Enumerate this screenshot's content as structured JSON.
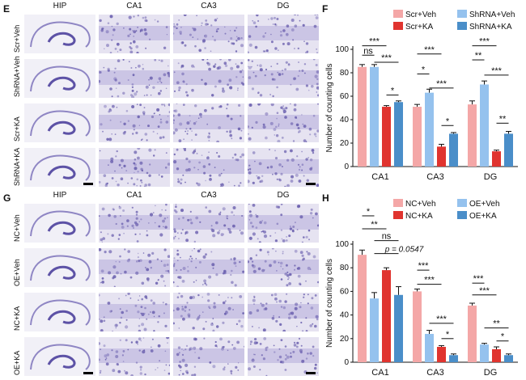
{
  "top_panel": {
    "label": "E",
    "columns": [
      "HIP",
      "CA1",
      "CA3",
      "DG"
    ],
    "rows": [
      "Scr+Veh",
      "ShRNA+Veh",
      "Scr+KA",
      "ShRNA+KA"
    ]
  },
  "bottom_panel": {
    "label": "G",
    "columns": [
      "HIP",
      "CA1",
      "CA3",
      "DG"
    ],
    "rows": [
      "NC+Veh",
      "OE+Veh",
      "NC+KA",
      "OE+KA"
    ]
  },
  "colors": {
    "light_red": "#f4a7a7",
    "red": "#e0342f",
    "light_blue": "#95c2ee",
    "blue": "#4a8ec9",
    "stain": "#7b6fb8"
  },
  "chart_data": [
    {
      "panel": "F",
      "type": "bar",
      "ylabel": "Number of counting cells",
      "ylim": [
        0,
        100
      ],
      "yticks": [
        0,
        20,
        40,
        60,
        80,
        100
      ],
      "categories": [
        "CA1",
        "CA3",
        "DG"
      ],
      "legend_placement": "top",
      "series": [
        {
          "name": "Scr+Veh",
          "color": "#f4a7a7",
          "values": [
            85,
            51,
            53
          ],
          "errors": [
            2,
            2,
            3
          ]
        },
        {
          "name": "ShRNA+Veh",
          "color": "#95c2ee",
          "values": [
            85,
            63,
            70
          ],
          "errors": [
            2,
            3,
            3
          ]
        },
        {
          "name": "Scr+KA",
          "color": "#e0342f",
          "values": [
            51,
            17,
            13
          ],
          "errors": [
            1,
            2,
            1
          ]
        },
        {
          "name": "ShRNA+KA",
          "color": "#4a8ec9",
          "values": [
            55,
            28,
            28
          ],
          "errors": [
            1,
            1,
            2
          ]
        }
      ],
      "significance": [
        "***",
        "ns",
        "***",
        "*",
        "***",
        "*",
        "***",
        "*",
        "***",
        "**",
        "***",
        "**"
      ]
    },
    {
      "panel": "H",
      "type": "bar",
      "ylabel": "Number of counting cells",
      "ylim": [
        0,
        100
      ],
      "yticks": [
        0,
        20,
        40,
        60,
        80,
        100
      ],
      "categories": [
        "CA1",
        "CA3",
        "DG"
      ],
      "legend_placement": "top",
      "series": [
        {
          "name": "NC+Veh",
          "color": "#f4a7a7",
          "values": [
            91,
            60,
            48
          ],
          "errors": [
            4,
            2,
            2
          ]
        },
        {
          "name": "OE+Veh",
          "color": "#95c2ee",
          "values": [
            54,
            24,
            15
          ],
          "errors": [
            5,
            3,
            1
          ]
        },
        {
          "name": "NC+KA",
          "color": "#e0342f",
          "values": [
            78,
            13,
            11
          ],
          "errors": [
            2,
            1,
            2
          ]
        },
        {
          "name": "OE+KA",
          "color": "#4a8ec9",
          "values": [
            57,
            6,
            6
          ],
          "errors": [
            7,
            1,
            1
          ]
        }
      ],
      "significance": [
        "*",
        "**",
        "ns",
        "p = 0.0547",
        "***",
        "***",
        "***",
        "*",
        "***",
        "***",
        "**",
        "*"
      ]
    }
  ]
}
